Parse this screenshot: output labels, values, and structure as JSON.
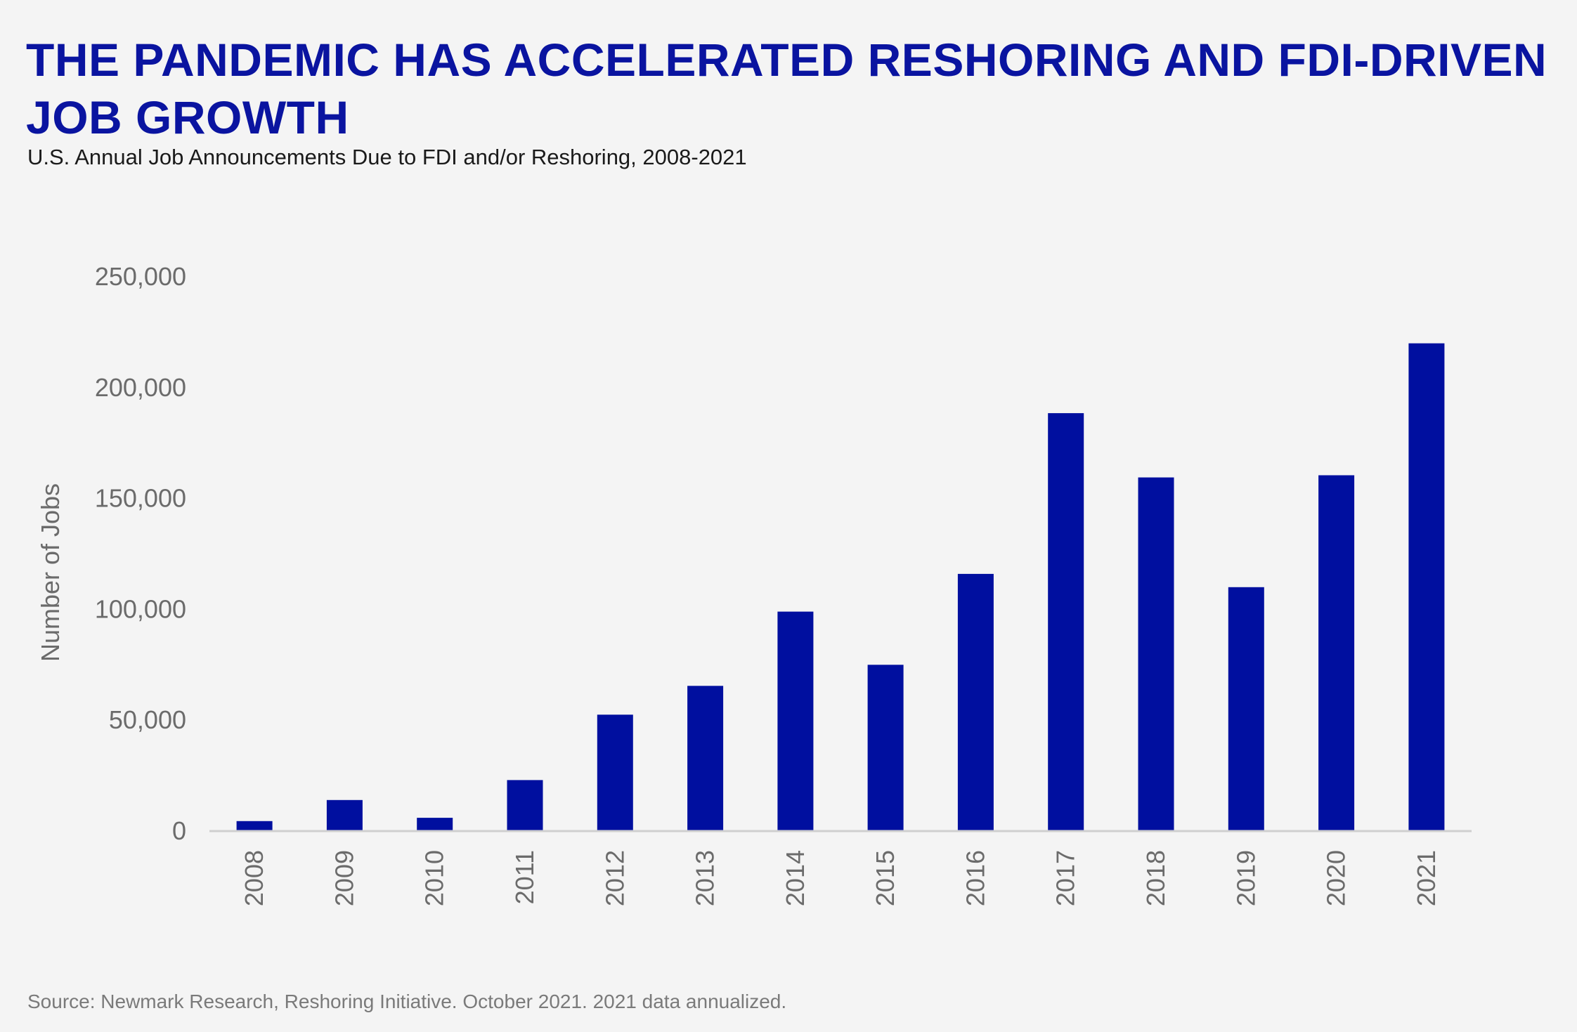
{
  "title": "THE PANDEMIC HAS ACCELERATED RESHORING AND FDI-DRIVEN JOB GROWTH",
  "subtitle": "U.S. Annual Job Announcements Due to FDI and/or Reshoring, 2008-2021",
  "source": "Source: Newmark Research, Reshoring Initiative. October 2021. 2021 data annualized.",
  "colors": {
    "bar": "#000f9f",
    "title": "#0a14a0",
    "axis_text": "#6b6b6b",
    "baseline": "#cfcfcf",
    "background": "#f4f4f4"
  },
  "chart_data": {
    "type": "bar",
    "title": "THE PANDEMIC HAS ACCELERATED RESHORING AND FDI-DRIVEN JOB GROWTH",
    "subtitle": "U.S. Annual Job Announcements Due to FDI and/or Reshoring, 2008-2021",
    "xlabel": "",
    "ylabel": "Number of Jobs",
    "categories": [
      "2008",
      "2009",
      "2010",
      "2011",
      "2012",
      "2013",
      "2014",
      "2015",
      "2016",
      "2017",
      "2018",
      "2019",
      "2020",
      "2021"
    ],
    "values": [
      4500,
      14000,
      6000,
      23000,
      52500,
      65500,
      99000,
      75000,
      116000,
      188500,
      159500,
      110000,
      160500,
      220000
    ],
    "ylim": [
      0,
      250000
    ],
    "yticks": [
      0,
      50000,
      100000,
      150000,
      200000,
      250000
    ],
    "ytick_labels": [
      "0",
      "50,000",
      "100,000",
      "150,000",
      "200,000",
      "250,000"
    ],
    "grid": false,
    "legend": "none",
    "x_tick_rotation": "vertical"
  }
}
